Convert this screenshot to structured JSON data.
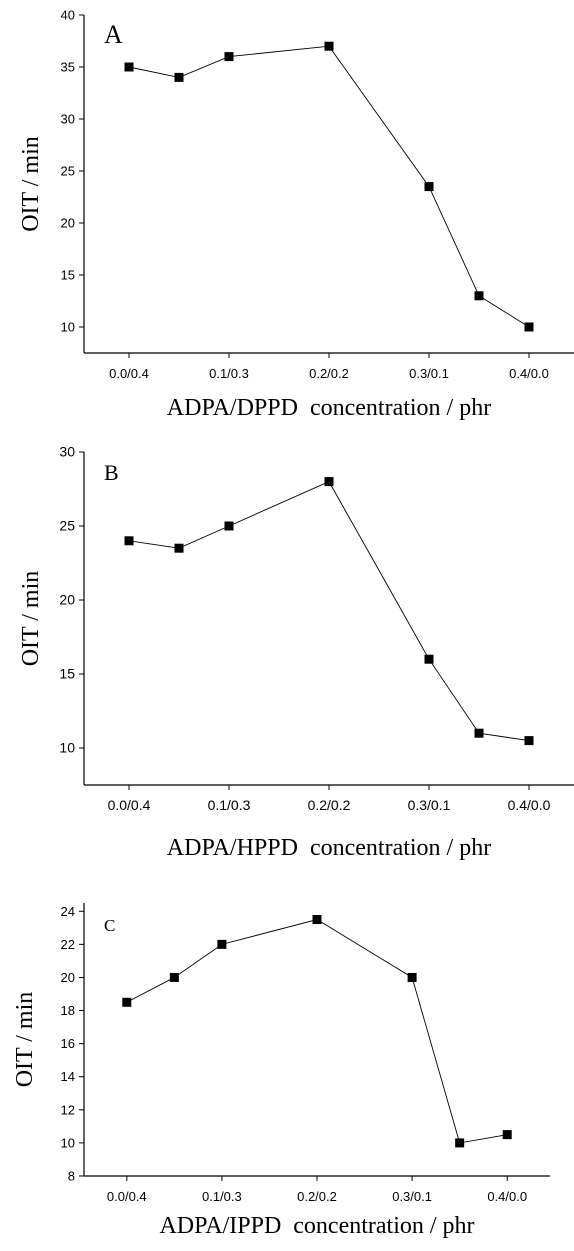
{
  "figure": {
    "panels": 3
  },
  "chart_data": [
    {
      "type": "line",
      "panel_label": "A",
      "title": "",
      "xlabel": "ADPA/DPPD  concentration / phr",
      "ylabel": "OIT / min",
      "categories": [
        "0.0/0.4",
        "0.1/0.3",
        "0.2/0.2",
        "0.3/0.1",
        "0.4/0.0"
      ],
      "x": [
        0.0,
        0.05,
        0.1,
        0.2,
        0.3,
        0.35,
        0.4
      ],
      "xlim": [
        -0.045,
        0.445
      ],
      "ylim": [
        7.5,
        40
      ],
      "yticks": [
        10,
        15,
        20,
        25,
        30,
        35,
        40
      ],
      "grid": false,
      "marker": "square",
      "series": [
        {
          "values": [
            35,
            34,
            36,
            37,
            23.5,
            13,
            10
          ]
        }
      ],
      "color": "#000000"
    },
    {
      "type": "line",
      "panel_label": "B",
      "title": "",
      "xlabel": "ADPA/HPPD  concentration / phr",
      "ylabel": "OIT / min",
      "categories": [
        "0.0/0.4",
        "0.1/0.3",
        "0.2/0.2",
        "0.3/0.1",
        "0.4/0.0"
      ],
      "x": [
        0.0,
        0.05,
        0.1,
        0.2,
        0.3,
        0.35,
        0.4
      ],
      "xlim": [
        -0.045,
        0.445
      ],
      "ylim": [
        7.5,
        30
      ],
      "yticks": [
        10,
        15,
        20,
        25,
        30
      ],
      "grid": false,
      "marker": "square",
      "series": [
        {
          "values": [
            24,
            23.5,
            25,
            28,
            16,
            11,
            10.5
          ]
        }
      ],
      "color": "#000000"
    },
    {
      "type": "line",
      "panel_label": "C",
      "title": "",
      "xlabel": "ADPA/IPPD  concentration / phr",
      "ylabel": "OIT / min",
      "categories": [
        "0.0/0.4",
        "0.1/0.3",
        "0.2/0.2",
        "0.3/0.1",
        "0.4/0.0"
      ],
      "x": [
        0.0,
        0.05,
        0.1,
        0.2,
        0.3,
        0.35,
        0.4
      ],
      "xlim": [
        -0.045,
        0.445
      ],
      "ylim": [
        8,
        24.5
      ],
      "yticks": [
        8,
        10,
        12,
        14,
        16,
        18,
        20,
        22,
        24
      ],
      "grid": false,
      "marker": "square",
      "series": [
        {
          "values": [
            18.5,
            20,
            22,
            23.5,
            20,
            10,
            10.5
          ]
        }
      ],
      "color": "#000000"
    }
  ]
}
